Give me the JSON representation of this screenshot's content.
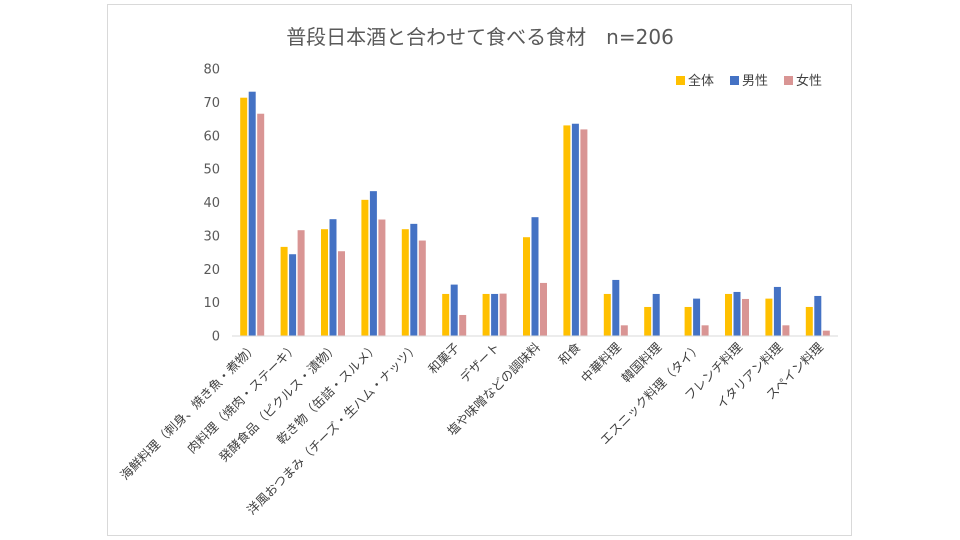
{
  "chart_data": {
    "type": "bar",
    "title": "普段日本酒と合わせて食べる食材　n=206",
    "categories": [
      "海鮮料理（刺身、焼き魚・煮物）",
      "肉料理（焼肉・ステーキ）",
      "発酵食品（ピクルス・漬物）",
      "乾き物（缶詰・スルメ）",
      "洋風おつまみ（チーズ・生ハム・ナッツ）",
      "和菓子",
      "デザート",
      "塩や味噌などの調味料",
      "和食",
      "中華料理",
      "韓国料理",
      "エスニック料理（タイ）",
      "フレンチ料理",
      "イタリアン料理",
      "スペイン料理"
    ],
    "series": [
      {
        "name": "全体",
        "color": "#ffc000",
        "values": [
          71.4,
          26.7,
          32.0,
          40.8,
          32.0,
          12.6,
          12.6,
          29.6,
          63.1,
          12.6,
          8.7,
          8.7,
          12.6,
          11.2,
          8.7
        ]
      },
      {
        "name": "男性",
        "color": "#4472c4",
        "values": [
          73.2,
          24.5,
          35.0,
          43.4,
          33.6,
          15.4,
          12.6,
          35.6,
          63.6,
          16.8,
          12.6,
          11.2,
          13.2,
          14.7,
          12.0
        ]
      },
      {
        "name": "女性",
        "color": "#d99594",
        "values": [
          66.6,
          31.7,
          25.4,
          34.9,
          28.6,
          6.3,
          12.7,
          15.9,
          61.9,
          3.2,
          0,
          3.2,
          11.1,
          3.2,
          1.6
        ]
      }
    ],
    "ylim": [
      0,
      80
    ],
    "yticks": [
      0,
      10,
      20,
      30,
      40,
      50,
      60,
      70,
      80
    ],
    "grid": false,
    "legend_position": "top-right",
    "xlabel": "",
    "ylabel": ""
  }
}
